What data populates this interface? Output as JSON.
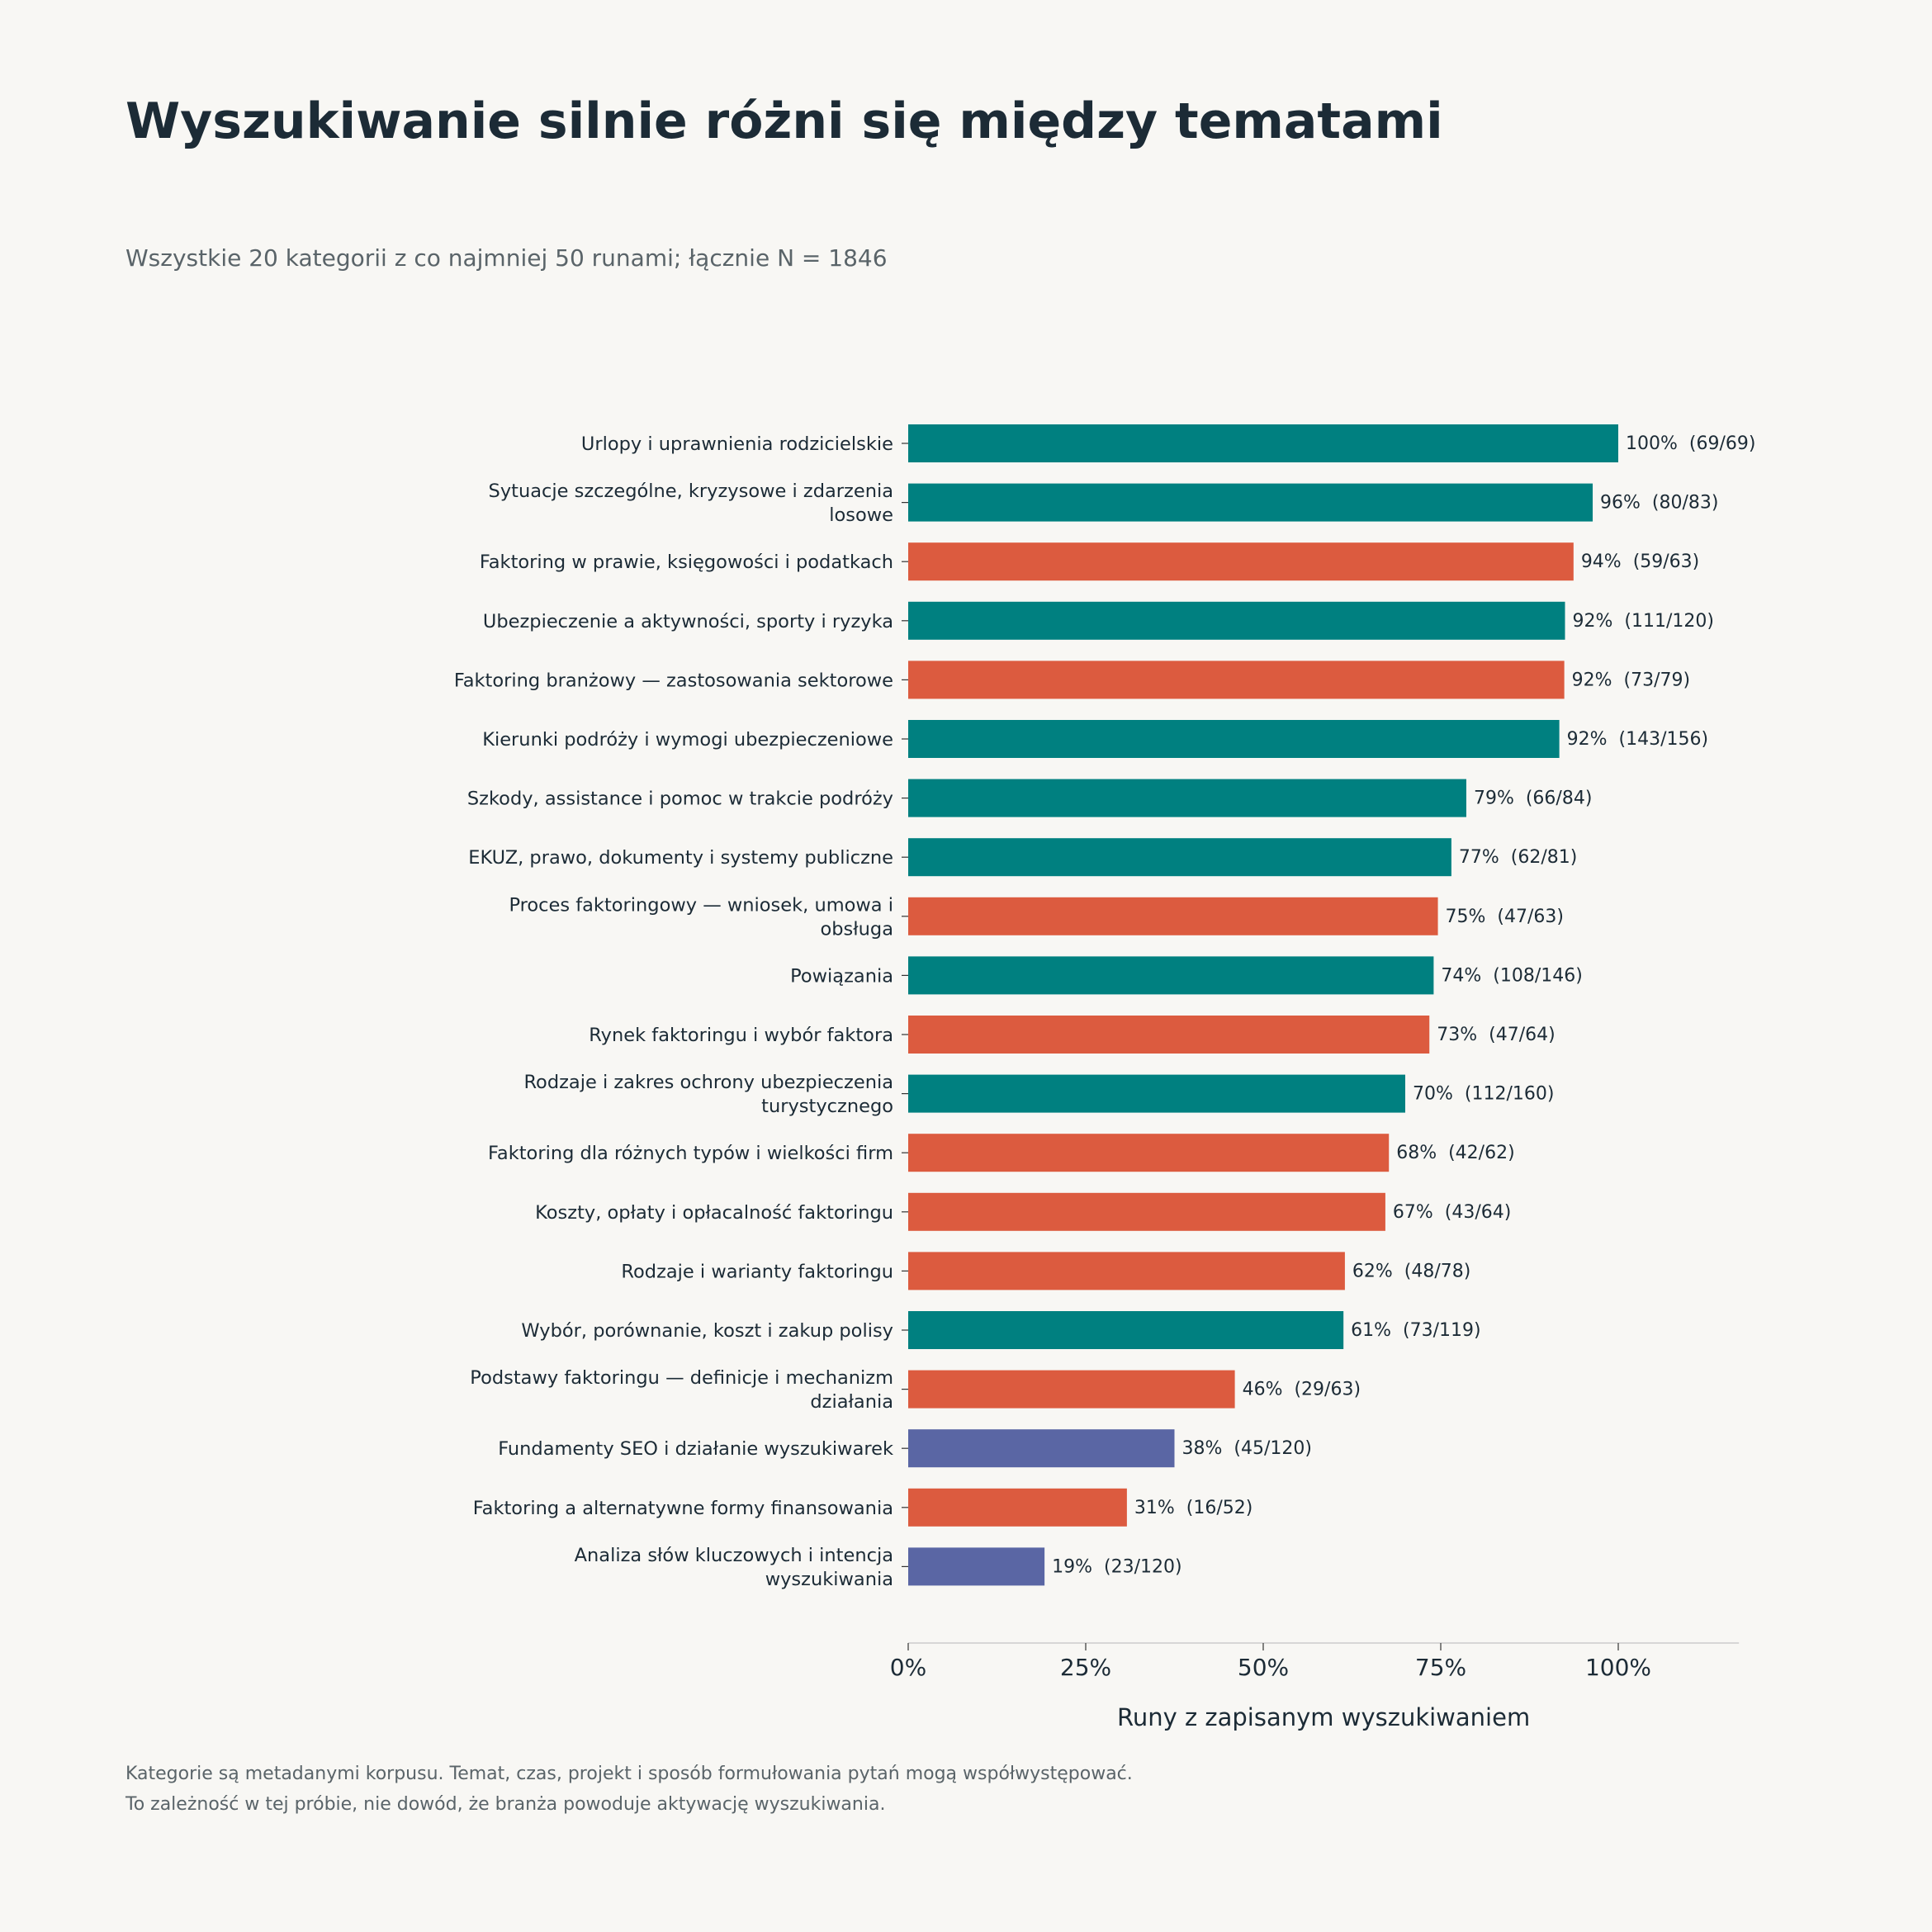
{
  "title": "Wyszukiwanie silnie różni się między tematami",
  "subtitle": "Wszystkie 20 kategorii z co najmniej 50 runami; łącznie N = 1846",
  "footnotes": [
    "Kategorie są metadanymi korpusu. Temat, czas, projekt i sposób formułowania pytań mogą współwystępować.",
    "To zależność w tej próbie, nie dowód, że branża powoduje aktywację wyszukiwania."
  ],
  "chart_data": {
    "type": "bar",
    "orientation": "horizontal",
    "xlabel": "Runy z zapisanym wyszukiwaniem",
    "xlim": [
      0,
      1.17
    ],
    "xticks": [
      0,
      0.25,
      0.5,
      0.75,
      1.0
    ],
    "xtick_labels": [
      "0%",
      "25%",
      "50%",
      "75%",
      "100%"
    ],
    "grid": false,
    "colors": {
      "teal": "#008080",
      "orange": "#dc5b3f",
      "blue": "#5a66a4"
    },
    "bars": [
      {
        "label": [
          "Urlopy i uprawnienia rodzicielskie"
        ],
        "value": 1.0,
        "text": "100%  (69/69)",
        "color": "teal"
      },
      {
        "label": [
          "Sytuacje szczególne, kryzysowe i zdarzenia",
          "losowe"
        ],
        "value": 0.964,
        "text": "96%  (80/83)",
        "color": "teal"
      },
      {
        "label": [
          "Faktoring w prawie, księgowości i podatkach"
        ],
        "value": 0.937,
        "text": "94%  (59/63)",
        "color": "orange"
      },
      {
        "label": [
          "Ubezpieczenie a aktywności, sporty i ryzyka"
        ],
        "value": 0.925,
        "text": "92%  (111/120)",
        "color": "teal"
      },
      {
        "label": [
          "Faktoring branżowy — zastosowania sektorowe"
        ],
        "value": 0.924,
        "text": "92%  (73/79)",
        "color": "orange"
      },
      {
        "label": [
          "Kierunki podróży i wymogi ubezpieczeniowe"
        ],
        "value": 0.917,
        "text": "92%  (143/156)",
        "color": "teal"
      },
      {
        "label": [
          "Szkody, assistance i pomoc w trakcie podróży"
        ],
        "value": 0.786,
        "text": "79%  (66/84)",
        "color": "teal"
      },
      {
        "label": [
          "EKUZ, prawo, dokumenty i systemy publiczne"
        ],
        "value": 0.765,
        "text": "77%  (62/81)",
        "color": "teal"
      },
      {
        "label": [
          "Proces faktoringowy — wniosek, umowa i",
          "obsługa"
        ],
        "value": 0.746,
        "text": "75%  (47/63)",
        "color": "orange"
      },
      {
        "label": [
          "Powiązania"
        ],
        "value": 0.74,
        "text": "74%  (108/146)",
        "color": "teal"
      },
      {
        "label": [
          "Rynek faktoringu i wybór faktora"
        ],
        "value": 0.734,
        "text": "73%  (47/64)",
        "color": "orange"
      },
      {
        "label": [
          "Rodzaje i zakres ochrony ubezpieczenia",
          "turystycznego"
        ],
        "value": 0.7,
        "text": "70%  (112/160)",
        "color": "teal"
      },
      {
        "label": [
          "Faktoring dla różnych typów i wielkości firm"
        ],
        "value": 0.677,
        "text": "68%  (42/62)",
        "color": "orange"
      },
      {
        "label": [
          "Koszty, opłaty i opłacalność faktoringu"
        ],
        "value": 0.672,
        "text": "67%  (43/64)",
        "color": "orange"
      },
      {
        "label": [
          "Rodzaje i warianty faktoringu"
        ],
        "value": 0.615,
        "text": "62%  (48/78)",
        "color": "orange"
      },
      {
        "label": [
          "Wybór, porównanie, koszt i zakup polisy"
        ],
        "value": 0.613,
        "text": "61%  (73/119)",
        "color": "teal"
      },
      {
        "label": [
          "Podstawy faktoringu — definicje i mechanizm",
          "działania"
        ],
        "value": 0.46,
        "text": "46%  (29/63)",
        "color": "orange"
      },
      {
        "label": [
          "Fundamenty SEO i działanie wyszukiwarek"
        ],
        "value": 0.375,
        "text": "38%  (45/120)",
        "color": "blue"
      },
      {
        "label": [
          "Faktoring a alternatywne formy finansowania"
        ],
        "value": 0.308,
        "text": "31%  (16/52)",
        "color": "orange"
      },
      {
        "label": [
          "Analiza słów kluczowych i intencja",
          "wyszukiwania"
        ],
        "value": 0.192,
        "text": "19%  (23/120)",
        "color": "blue"
      }
    ]
  }
}
